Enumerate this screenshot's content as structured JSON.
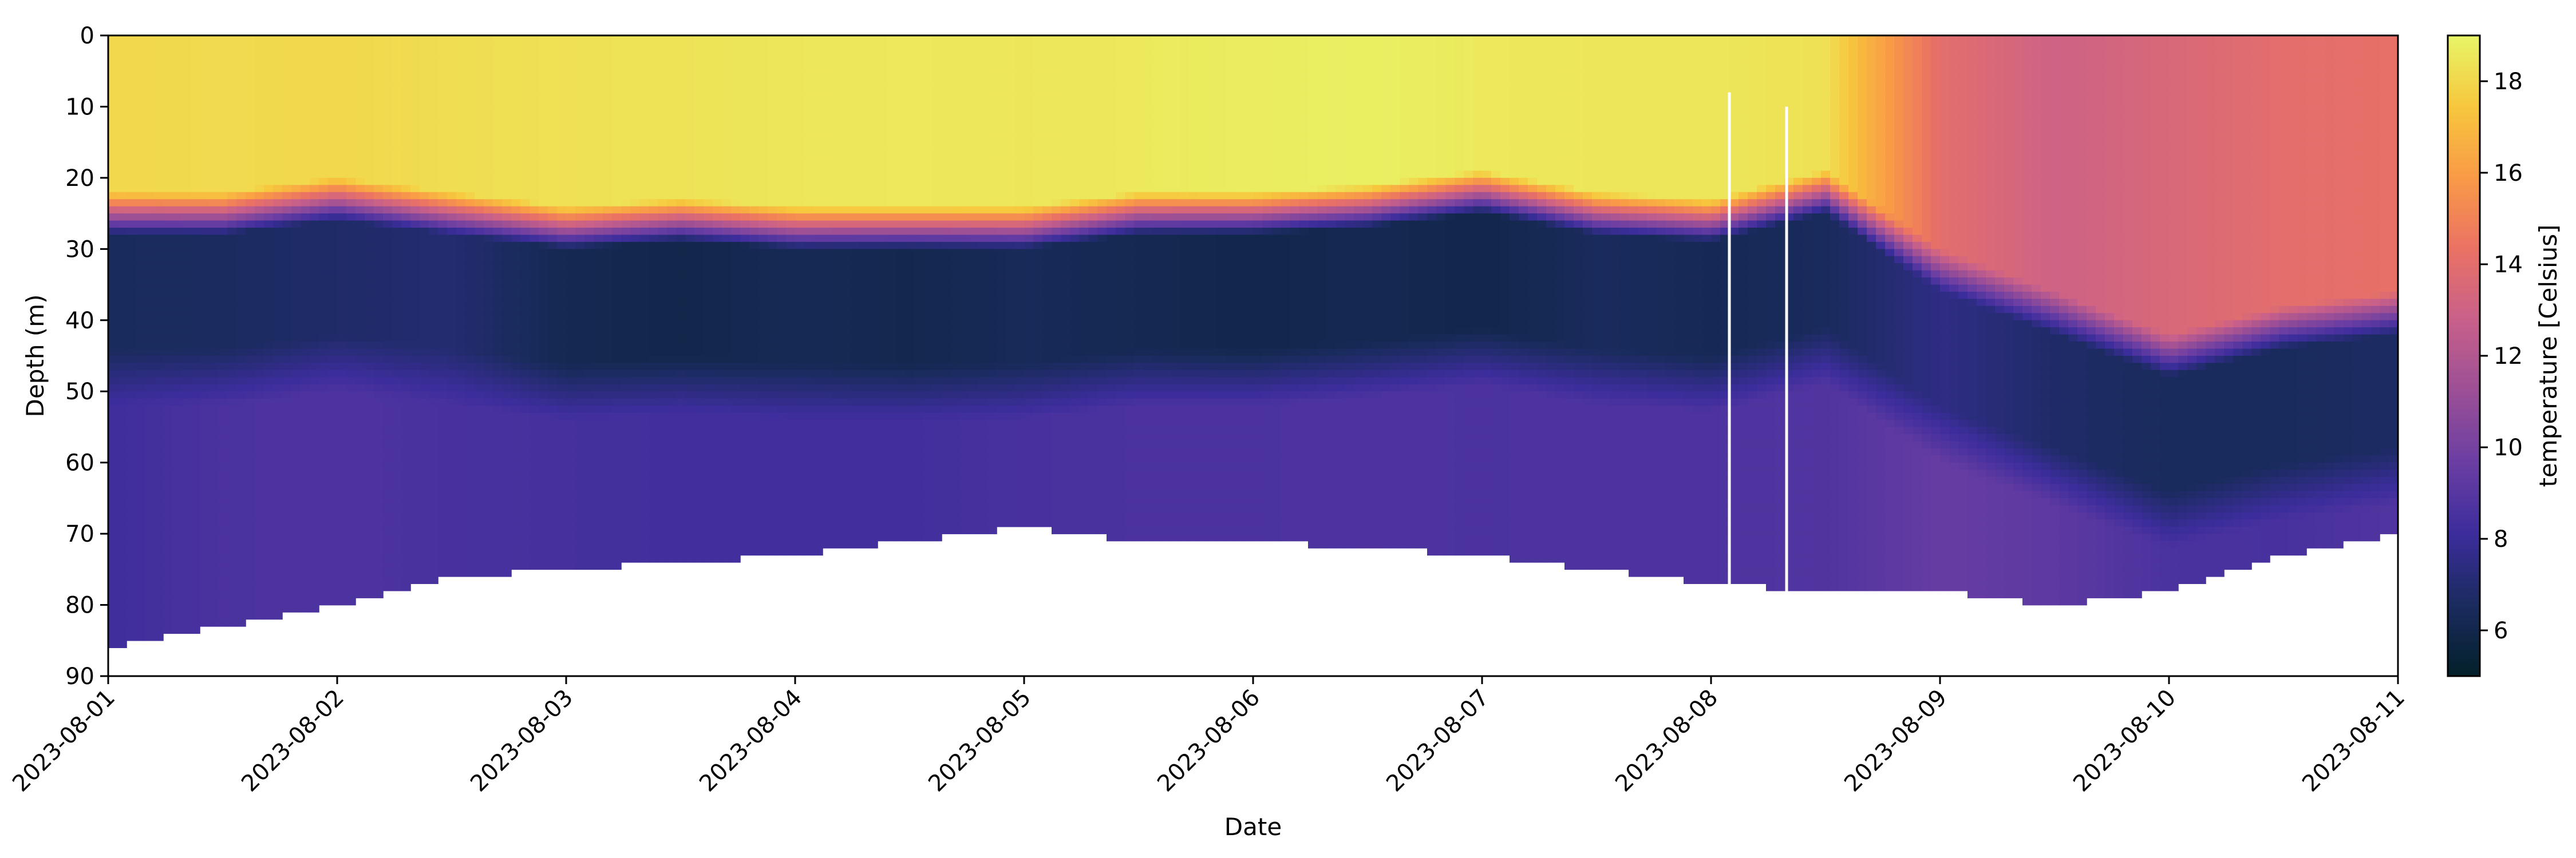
{
  "chart_data": {
    "type": "heatmap",
    "title": "",
    "xlabel": "Date",
    "ylabel": "Depth (m)",
    "colorbar_label": "temperature [Celsius]",
    "xlim": [
      "2023-08-01",
      "2023-08-11"
    ],
    "ylim": [
      90,
      0
    ],
    "y_inverted": true,
    "x_ticks": [
      "2023-08-01",
      "2023-08-02",
      "2023-08-03",
      "2023-08-04",
      "2023-08-05",
      "2023-08-06",
      "2023-08-07",
      "2023-08-08",
      "2023-08-09",
      "2023-08-10",
      "2023-08-11"
    ],
    "y_ticks": [
      0,
      10,
      20,
      30,
      40,
      50,
      60,
      70,
      80,
      90
    ],
    "colorbar_range": [
      5,
      19
    ],
    "colorbar_ticks": [
      6,
      8,
      10,
      12,
      14,
      16,
      18
    ],
    "colormap": "thermal",
    "colormap_stops": [
      "#03202a",
      "#1a2b5e",
      "#3c2d9c",
      "#6b3ea3",
      "#9b4f96",
      "#c8608a",
      "#ea7264",
      "#f99a47",
      "#f7c73d",
      "#e8f568"
    ],
    "x_days": [
      0,
      0.5,
      1,
      1.5,
      2,
      2.5,
      3,
      3.5,
      4,
      4.5,
      5,
      5.5,
      6,
      6.5,
      7,
      7.5,
      8,
      8.5,
      9,
      9.5,
      10
    ],
    "profiles": {
      "thermocline_top_depth": [
        22,
        22,
        20,
        22,
        24,
        23,
        24,
        24,
        24,
        22,
        22,
        21,
        19,
        22,
        23,
        19,
        30,
        36,
        42,
        38,
        36
      ],
      "surface_temperature": [
        18.0,
        18.1,
        18.0,
        18.2,
        18.3,
        18.4,
        18.5,
        18.6,
        18.5,
        18.6,
        18.7,
        18.8,
        18.6,
        18.5,
        18.5,
        18.3,
        14.0,
        13.0,
        13.5,
        14.0,
        14.2
      ],
      "cold_core_temperature": [
        6.5,
        6.6,
        6.8,
        7.0,
        6.2,
        6.0,
        6.3,
        6.1,
        6.4,
        6.2,
        6.0,
        6.2,
        6.0,
        6.5,
        6.3,
        6.5,
        7.5,
        6.8,
        6.5,
        6.5,
        6.7
      ],
      "deep_temperature": [
        8.2,
        8.6,
        8.7,
        8.5,
        8.4,
        8.3,
        8.3,
        8.3,
        8.5,
        8.6,
        8.6,
        8.7,
        8.6,
        8.7,
        8.7,
        8.8,
        9.5,
        9.2,
        8.6,
        8.5,
        8.8
      ],
      "seabed_depth": [
        86,
        83,
        80,
        76,
        75,
        74,
        73,
        71,
        69,
        71,
        71,
        72,
        73,
        75,
        77,
        78,
        78,
        80,
        78,
        73,
        70
      ]
    },
    "gaps": [
      {
        "date": "2023-08-08",
        "day": 7.08,
        "from_depth": 8,
        "to_depth": 79
      },
      {
        "date": "2023-08-08",
        "day": 7.33,
        "from_depth": 10,
        "to_depth": 81
      }
    ]
  }
}
